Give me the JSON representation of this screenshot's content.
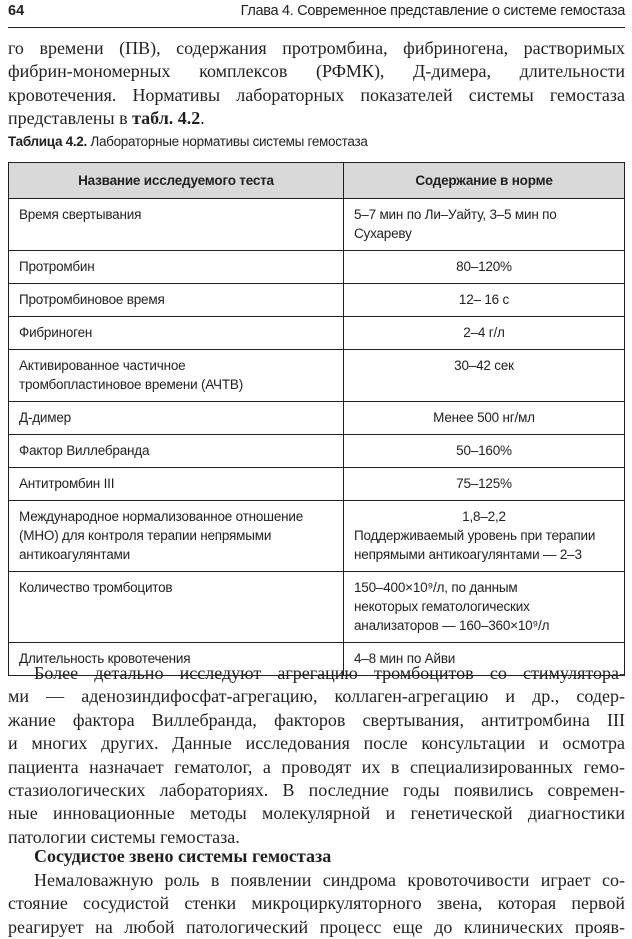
{
  "header": {
    "page_number": "64",
    "chapter_title": "Глава 4. Современное представление о системе гемостаза"
  },
  "intro_lines": [
    "го времени (ПВ), содержания протромбина, фибриногена, растворимых",
    "фибрин-мономерных комплексов (РФМК), Д-димера, длительности",
    "кровотечения. Нормативы лабораторных показателей системы гемостаза"
  ],
  "intro_last": {
    "text": "представлены в ",
    "ref": "табл. 4.2",
    "end": "."
  },
  "caption": {
    "label": "Таблица 4.2.",
    "text": " Лабораторные нормативы системы гемостаза"
  },
  "table": {
    "headers": [
      "Название исследуемого теста",
      "Содержание в норме"
    ],
    "rows": [
      {
        "test": "Время свертывания",
        "norm": "5–7 мин по Ли–Уайту, 3–5 мин по Сухареву"
      },
      {
        "test": "Протромбин",
        "norm": "80–120%"
      },
      {
        "test": "Протромбиновое время",
        "norm": "12– 16 с"
      },
      {
        "test": "Фибриноген",
        "norm": "2–4 г/л"
      },
      {
        "test": "Активированное частичное тромбопластиновое времени (АЧТВ)",
        "norm": "30–42 сек"
      },
      {
        "test": "Д-димер",
        "norm": "Менее 500 нг/мл"
      },
      {
        "test": "Фактор Виллебранда",
        "norm": "50–160%"
      },
      {
        "test": "Антитромбин III",
        "norm": "75–125%"
      },
      {
        "test": "Международное нормализованное отношение (МНО) для контроля терапии непрямыми антикоагулянтами",
        "norm": "1,8–2,2",
        "norm_note": "Поддерживаемый уровень при терапии непрямыми антикоагулянтами — 2–3"
      },
      {
        "test": "Количество тромбоцитов",
        "norm": "150–400×10⁹/л, по данным некоторых гематологических анализаторов — 160–360×10⁹/л"
      },
      {
        "test": "Длительность кровотечения",
        "norm": "4–8 мин по Айви"
      }
    ]
  },
  "body_lines": [
    "Более детально исследуют агрегацию тромбоцитов со стимулятора-",
    "ми — аденозиндифосфат-агрегацию, коллаген-агрегацию и др., содер-",
    "жание фактора Виллебранда, факторов свертывания, антитромбина III",
    "и многих других. Данные исследования после консультации и осмотра",
    "пациента назначает гематолог, а проводят их в специализированных гемо-",
    "стазиологических лабораториях. В последние годы появились современ-",
    "ные инновационные методы молекулярной и генетической диагностики",
    "патологии системы гемостаза."
  ],
  "subheading": "Сосудистое звено системы гемостаза",
  "vascular_lines": [
    "Немаловажную роль в появлении синдрома кровоточивости играет со-",
    "стояние сосудистой стенки микроциркуляторного звена, которая первой",
    "реагирует на любой патологический процесс еще до клинических прояв-"
  ]
}
